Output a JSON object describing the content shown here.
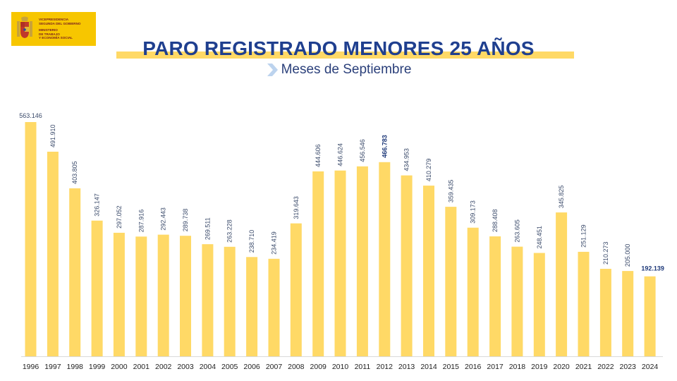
{
  "logo": {
    "lines": [
      "VICEPRESIDENCIA",
      "SEGUNDA DEL GOBIERNO",
      "MINISTERIO",
      "DE TRABAJO",
      "Y ECONOMÍA SOCIAL"
    ],
    "background_color": "#f7c600",
    "emblem_icon": "coat-of-arms-icon"
  },
  "colors": {
    "bar": "#ffd966",
    "title": "#1f3f8f",
    "chevron": "#bcd3ee"
  },
  "chart_data": {
    "type": "bar",
    "title": "PARO REGISTRADO MENORES 25 AÑOS",
    "subtitle": "Meses de Septiembre",
    "xlabel": "",
    "ylabel": "",
    "grid": false,
    "legend": "none",
    "ylim": [
      0,
      563146
    ],
    "categories": [
      "1996",
      "1997",
      "1998",
      "1999",
      "2000",
      "2001",
      "2002",
      "2003",
      "2004",
      "2005",
      "2006",
      "2007",
      "2008",
      "2009",
      "2010",
      "2011",
      "2012",
      "2013",
      "2014",
      "2015",
      "2016",
      "2017",
      "2018",
      "2019",
      "2020",
      "2021",
      "2022",
      "2023",
      "2024"
    ],
    "values": [
      563146,
      491910,
      403805,
      326147,
      297052,
      287916,
      292443,
      289738,
      269511,
      263228,
      238710,
      234419,
      319643,
      444606,
      446624,
      456546,
      466783,
      434953,
      410279,
      359435,
      309173,
      288408,
      263605,
      248451,
      345825,
      251129,
      210273,
      205000,
      192139
    ],
    "labels": [
      "563.146",
      "491.910",
      "403.805",
      "326.147",
      "297.052",
      "287.916",
      "292.443",
      "289.738",
      "269.511",
      "263.228",
      "238.710",
      "234.419",
      "319.643",
      "444.606",
      "446.624",
      "456.546",
      "466.783",
      "434.953",
      "410.279",
      "359.435",
      "309.173",
      "288.408",
      "263.605",
      "248.451",
      "345.825",
      "251.129",
      "210.273",
      "205.000",
      "192.139"
    ],
    "highlighted": [
      "2012",
      "2024"
    ]
  }
}
